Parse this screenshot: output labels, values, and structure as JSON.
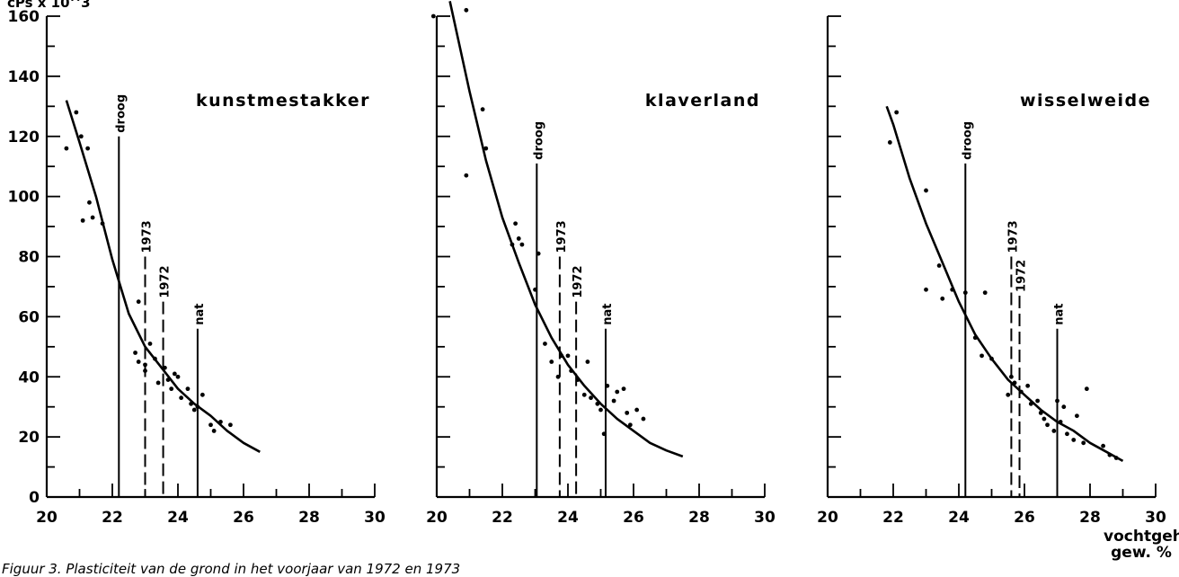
{
  "figure": {
    "y_unit_label": "cPs x 10^3",
    "x_unit_label_line1": "vochtgehalte,",
    "x_unit_label_line2": "gew. %",
    "caption": "Figuur 3. Plasticiteit van de grond in het voorjaar van 1972 en 1973"
  },
  "chart_data": [
    {
      "type": "scatter",
      "title": "kunstmestakker",
      "xlim": [
        20,
        30
      ],
      "ylim": [
        0,
        160
      ],
      "xticks": [
        20,
        22,
        24,
        26,
        28,
        30
      ],
      "yticks": [
        0,
        20,
        40,
        60,
        80,
        100,
        120,
        140,
        160
      ],
      "grid": false,
      "curve": [
        [
          20.6,
          132
        ],
        [
          21.0,
          118
        ],
        [
          21.5,
          100
        ],
        [
          22.0,
          79
        ],
        [
          22.5,
          61
        ],
        [
          23.0,
          50
        ],
        [
          23.5,
          43
        ],
        [
          24.0,
          36
        ],
        [
          24.5,
          31
        ],
        [
          25.0,
          27
        ],
        [
          25.5,
          22
        ],
        [
          26.0,
          18
        ],
        [
          26.5,
          15
        ]
      ],
      "points": [
        [
          20.6,
          116
        ],
        [
          20.9,
          128
        ],
        [
          21.05,
          120
        ],
        [
          21.25,
          116
        ],
        [
          21.3,
          98
        ],
        [
          21.1,
          92
        ],
        [
          21.4,
          93
        ],
        [
          21.7,
          91
        ],
        [
          22.8,
          65
        ],
        [
          22.7,
          48
        ],
        [
          22.8,
          45
        ],
        [
          23.0,
          44
        ],
        [
          23.0,
          42
        ],
        [
          23.15,
          51
        ],
        [
          23.3,
          46
        ],
        [
          23.4,
          38
        ],
        [
          23.6,
          43
        ],
        [
          23.7,
          39
        ],
        [
          23.8,
          36
        ],
        [
          23.9,
          41
        ],
        [
          24.0,
          40
        ],
        [
          24.1,
          33
        ],
        [
          24.3,
          36
        ],
        [
          24.4,
          31
        ],
        [
          24.5,
          29
        ],
        [
          24.6,
          30
        ],
        [
          24.75,
          34
        ],
        [
          25.0,
          24
        ],
        [
          25.1,
          22
        ],
        [
          25.3,
          25
        ],
        [
          25.6,
          24
        ]
      ],
      "reference_lines": [
        {
          "label": "droog",
          "x": 22.2,
          "top": 120,
          "style": "solid"
        },
        {
          "label": "1973",
          "x": 23.0,
          "top": 80,
          "style": "dashed"
        },
        {
          "label": "1972",
          "x": 23.55,
          "top": 65,
          "style": "dashed"
        },
        {
          "label": "nat",
          "x": 24.6,
          "top": 56,
          "style": "solid"
        }
      ]
    },
    {
      "type": "scatter",
      "title": "klaverland",
      "xlim": [
        20,
        30
      ],
      "ylim": [
        0,
        160
      ],
      "xticks": [
        20,
        22,
        24,
        26,
        28,
        30
      ],
      "yticks": [
        0,
        20,
        40,
        60,
        80,
        100,
        120,
        140,
        160
      ],
      "grid": false,
      "curve": [
        [
          20.4,
          165
        ],
        [
          21.0,
          135
        ],
        [
          21.5,
          112
        ],
        [
          22.0,
          93
        ],
        [
          22.5,
          78
        ],
        [
          23.0,
          64
        ],
        [
          23.5,
          53
        ],
        [
          24.0,
          44
        ],
        [
          24.5,
          37
        ],
        [
          25.0,
          31
        ],
        [
          25.5,
          26
        ],
        [
          26.0,
          22
        ],
        [
          26.5,
          18
        ],
        [
          27.0,
          15.5
        ],
        [
          27.5,
          13.5
        ]
      ],
      "points": [
        [
          19.9,
          160
        ],
        [
          20.9,
          162
        ],
        [
          21.4,
          129
        ],
        [
          21.5,
          116
        ],
        [
          20.9,
          107
        ],
        [
          22.3,
          84
        ],
        [
          22.4,
          91
        ],
        [
          22.5,
          86
        ],
        [
          22.6,
          84
        ],
        [
          23.0,
          69
        ],
        [
          23.1,
          81
        ],
        [
          23.3,
          51
        ],
        [
          23.5,
          45
        ],
        [
          23.7,
          40
        ],
        [
          23.8,
          47
        ],
        [
          24.0,
          47
        ],
        [
          24.1,
          42
        ],
        [
          24.3,
          39
        ],
        [
          24.5,
          34
        ],
        [
          24.6,
          45
        ],
        [
          24.7,
          33
        ],
        [
          24.9,
          31
        ],
        [
          25.0,
          29
        ],
        [
          25.1,
          21
        ],
        [
          25.2,
          37
        ],
        [
          25.4,
          32
        ],
        [
          25.5,
          35
        ],
        [
          25.7,
          36
        ],
        [
          25.8,
          28
        ],
        [
          25.9,
          24
        ],
        [
          26.1,
          29
        ],
        [
          26.3,
          26
        ]
      ],
      "reference_lines": [
        {
          "label": "droog",
          "x": 23.05,
          "top": 111,
          "style": "solid"
        },
        {
          "label": "1973",
          "x": 23.75,
          "top": 80,
          "style": "dashed"
        },
        {
          "label": "1972",
          "x": 24.25,
          "top": 65,
          "style": "dashed"
        },
        {
          "label": "nat",
          "x": 25.15,
          "top": 56,
          "style": "solid"
        }
      ]
    },
    {
      "type": "scatter",
      "title": "wisselweide",
      "xlim": [
        20,
        30
      ],
      "ylim": [
        0,
        160
      ],
      "xticks": [
        20,
        22,
        24,
        26,
        28,
        30
      ],
      "yticks": [
        0,
        20,
        40,
        60,
        80,
        100,
        120,
        140,
        160
      ],
      "grid": false,
      "curve": [
        [
          21.8,
          130
        ],
        [
          22.0,
          124
        ],
        [
          22.5,
          106
        ],
        [
          23.0,
          91
        ],
        [
          23.5,
          78
        ],
        [
          24.0,
          65
        ],
        [
          24.5,
          54
        ],
        [
          25.0,
          46
        ],
        [
          25.5,
          39
        ],
        [
          26.0,
          34
        ],
        [
          26.5,
          29
        ],
        [
          27.0,
          25
        ],
        [
          27.5,
          22
        ],
        [
          28.0,
          18
        ],
        [
          28.5,
          15
        ],
        [
          29.0,
          12
        ]
      ],
      "points": [
        [
          21.9,
          118
        ],
        [
          22.1,
          128
        ],
        [
          23.0,
          102
        ],
        [
          23.0,
          69
        ],
        [
          23.4,
          77
        ],
        [
          23.5,
          66
        ],
        [
          23.8,
          69
        ],
        [
          24.2,
          68
        ],
        [
          24.5,
          53
        ],
        [
          24.7,
          47
        ],
        [
          24.8,
          68
        ],
        [
          25.0,
          46
        ],
        [
          25.5,
          34
        ],
        [
          25.6,
          40
        ],
        [
          25.7,
          38
        ],
        [
          25.9,
          35
        ],
        [
          26.1,
          37
        ],
        [
          26.2,
          31
        ],
        [
          26.4,
          32
        ],
        [
          26.5,
          28
        ],
        [
          26.6,
          26
        ],
        [
          26.7,
          24
        ],
        [
          26.9,
          22
        ],
        [
          27.0,
          32
        ],
        [
          27.1,
          25
        ],
        [
          27.2,
          30
        ],
        [
          27.3,
          21
        ],
        [
          27.5,
          19
        ],
        [
          27.6,
          27
        ],
        [
          27.8,
          18
        ],
        [
          27.9,
          36
        ],
        [
          28.4,
          17
        ],
        [
          28.6,
          14
        ],
        [
          28.8,
          13
        ]
      ],
      "reference_lines": [
        {
          "label": "droog",
          "x": 24.2,
          "top": 111,
          "style": "solid"
        },
        {
          "label": "1973",
          "x": 25.6,
          "top": 80,
          "style": "dashed"
        },
        {
          "label": "1972",
          "x": 25.85,
          "top": 67,
          "style": "dashed"
        },
        {
          "label": "nat",
          "x": 27.0,
          "top": 56,
          "style": "solid"
        }
      ]
    }
  ]
}
